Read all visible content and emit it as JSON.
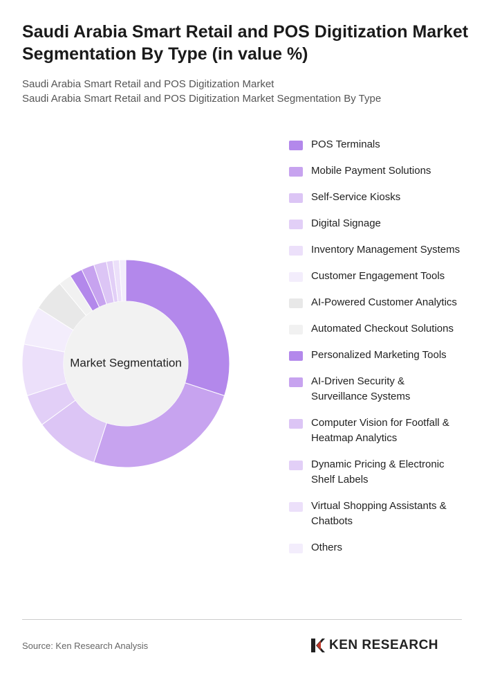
{
  "chart_data": {
    "type": "pie",
    "title": "Saudi Arabia Smart Retail and POS Digitization Market Segmentation By Type (in value %)",
    "subtitle": [
      "Saudi Arabia Smart Retail and POS Digitization Market",
      "Saudi Arabia Smart Retail and POS Digitization Market Segmentation By Type"
    ],
    "center_label": "Market Segmentation",
    "categories": [
      "POS Terminals",
      "Mobile Payment Solutions",
      "Self-Service Kiosks",
      "Digital Signage",
      "Inventory Management Systems",
      "Customer Engagement Tools",
      "AI-Powered Customer Analytics",
      "Automated Checkout Solutions",
      "Personalized Marketing Tools",
      "AI-Driven Security & Surveillance Systems",
      "Computer Vision for Footfall & Heatmap Analytics",
      "Dynamic Pricing & Electronic Shelf Labels",
      "Virtual Shopping Assistants & Chatbots",
      "Others"
    ],
    "values": [
      30,
      25,
      10,
      5,
      8,
      6,
      5,
      2,
      2,
      2,
      2,
      1,
      1,
      1
    ],
    "colors": [
      "#b388eb",
      "#c7a3ef",
      "#dcc5f5",
      "#e2cff7",
      "#ece0fa",
      "#f3edfc",
      "#e8e8e8",
      "#f1f1f1",
      "#b388eb",
      "#c7a3ef",
      "#dcc5f5",
      "#e2cff7",
      "#ece0fa",
      "#f3edfc"
    ],
    "source": "Source: Ken Research Analysis",
    "logo": "KEN RESEARCH"
  }
}
